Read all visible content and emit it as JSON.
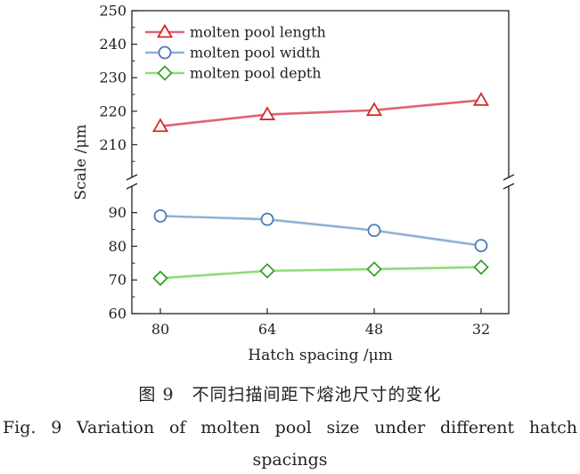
{
  "chart_data": {
    "type": "line",
    "x_type": "category",
    "categories": [
      "80",
      "64",
      "48",
      "32"
    ],
    "xlabel": "Hatch spacing /μm",
    "ylabel": "Scale /μm",
    "axis_break": true,
    "y_upper": {
      "ylim": [
        200,
        250
      ],
      "ticks": [
        "210",
        "220",
        "230",
        "240",
        "250"
      ]
    },
    "y_lower": {
      "ylim": [
        60,
        95
      ],
      "ticks": [
        "60",
        "70",
        "80",
        "90"
      ]
    },
    "legend_position": "top-left",
    "grid": false,
    "series": [
      {
        "name": "molten pool length",
        "values": [
          215.5,
          219,
          220.3,
          223.3
        ],
        "color": "#e06377",
        "marker": "triangle",
        "marker_color": "#d42a2a",
        "panel": "upper"
      },
      {
        "name": "molten pool width",
        "values": [
          89,
          88,
          84.7,
          80.2
        ],
        "color": "#8fb1d6",
        "marker": "circle",
        "marker_color": "#4a78b8",
        "panel": "lower"
      },
      {
        "name": "molten pool depth",
        "values": [
          70.5,
          72.7,
          73.2,
          73.8
        ],
        "color": "#8fdc7a",
        "marker": "diamond",
        "marker_color": "#3aa030",
        "panel": "lower"
      }
    ]
  },
  "caption": {
    "cn": "图 9　不同扫描间距下熔池尺寸的变化",
    "en_line1": "Fig. 9 Variation of molten pool size under different hatch",
    "en_line2": "spacings"
  }
}
